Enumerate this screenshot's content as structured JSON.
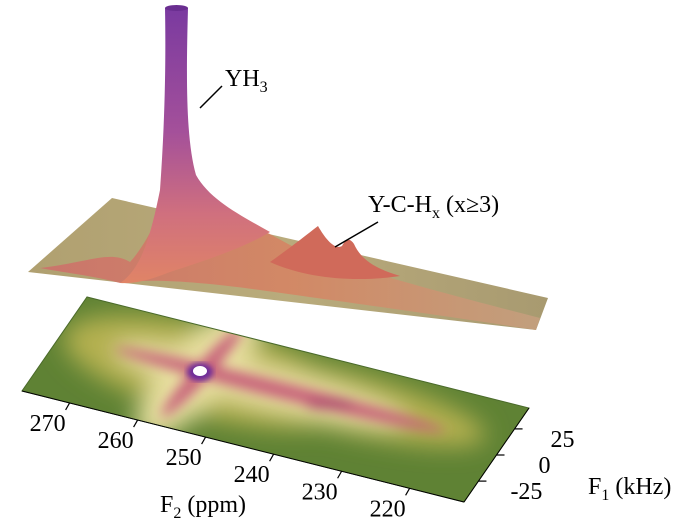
{
  "chart_data": {
    "type": "surface",
    "annotations": [
      {
        "base": "YH",
        "sub": "3",
        "suffix": ""
      },
      {
        "base": "Y-C-H",
        "sub": "x",
        "suffix": " (x≥3)"
      }
    ],
    "xlabel": {
      "base": "F",
      "sub": "2",
      "suffix": " (ppm)"
    },
    "ylabel": {
      "base": "F",
      "sub": "1",
      "suffix": " (kHz)"
    },
    "xlim": [
      277,
      212
    ],
    "xticks": [
      270,
      260,
      250,
      240,
      230,
      220
    ],
    "ylim": [
      -45,
      45
    ],
    "yticks": [
      25,
      0,
      -25
    ]
  }
}
